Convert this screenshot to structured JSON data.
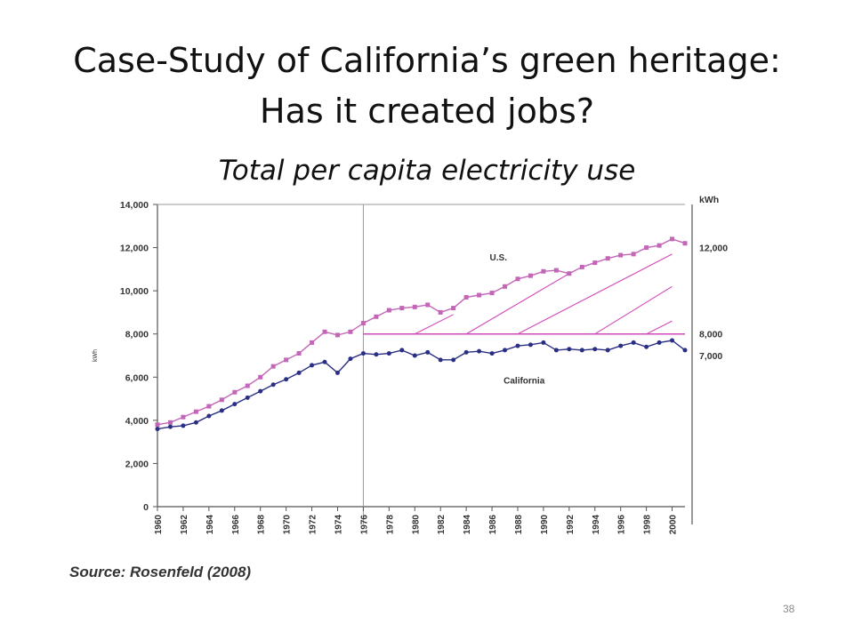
{
  "slide": {
    "title_line1": "Case-Study of California’s green heritage:",
    "title_line2": "Has it created jobs?",
    "subtitle": "Total per capita electricity use",
    "source": "Source: Rosenfeld (2008)",
    "page_number": "38"
  },
  "chart_data": {
    "type": "line",
    "ylabel": "kWh",
    "ylim": [
      0,
      14000
    ],
    "yticks": [
      "0",
      "2,000",
      "4,000",
      "6,000",
      "8,000",
      "10,000",
      "12,000",
      "14,000"
    ],
    "ytick_values": [
      0,
      2000,
      4000,
      6000,
      8000,
      10000,
      12000,
      14000
    ],
    "xlim": [
      1960,
      2001
    ],
    "xticks": [
      "1960",
      "1962",
      "1964",
      "1966",
      "1968",
      "1970",
      "1972",
      "1974",
      "1976",
      "1978",
      "1980",
      "1982",
      "1984",
      "1986",
      "1988",
      "1990",
      "1992",
      "1994",
      "1996",
      "1998",
      "2000"
    ],
    "x": [
      1960,
      1961,
      1962,
      1963,
      1964,
      1965,
      1966,
      1967,
      1968,
      1969,
      1970,
      1971,
      1972,
      1973,
      1974,
      1975,
      1976,
      1977,
      1978,
      1979,
      1980,
      1981,
      1982,
      1983,
      1984,
      1985,
      1986,
      1987,
      1988,
      1989,
      1990,
      1991,
      1992,
      1993,
      1994,
      1995,
      1996,
      1997,
      1998,
      1999,
      2000,
      2001
    ],
    "series": [
      {
        "name": "U.S.",
        "color": "#c466b8",
        "values": [
          3800,
          3900,
          4150,
          4400,
          4650,
          4950,
          5300,
          5600,
          6000,
          6500,
          6800,
          7100,
          7600,
          8100,
          7950,
          8100,
          8500,
          8800,
          9100,
          9200,
          9250,
          9350,
          9000,
          9200,
          9700,
          9800,
          9900,
          10200,
          10550,
          10700,
          10900,
          10950,
          10800,
          11100,
          11300,
          11500,
          11650,
          11700,
          12000,
          12100,
          12400,
          12200
        ]
      },
      {
        "name": "California",
        "color": "#2a2f86",
        "values": [
          3600,
          3700,
          3750,
          3900,
          4200,
          4450,
          4750,
          5050,
          5350,
          5650,
          5900,
          6200,
          6550,
          6700,
          6200,
          6850,
          7100,
          7050,
          7100,
          7250,
          7000,
          7150,
          6800,
          6800,
          7150,
          7200,
          7100,
          7250,
          7450,
          7500,
          7600,
          7250,
          7300,
          7250,
          7300,
          7250,
          7450,
          7600,
          7400,
          7600,
          7700,
          7250
        ]
      }
    ],
    "right_labels": [
      {
        "text": "kWh"
      },
      {
        "text": "12,000",
        "value": 12000
      },
      {
        "text": "8,000",
        "value": 8000
      },
      {
        "text": "7,000",
        "value": 7000
      }
    ],
    "reference_line": {
      "value": 8000,
      "from_year": 1976
    },
    "divider_year": 1976,
    "grid": false,
    "legend": "inline labels"
  }
}
